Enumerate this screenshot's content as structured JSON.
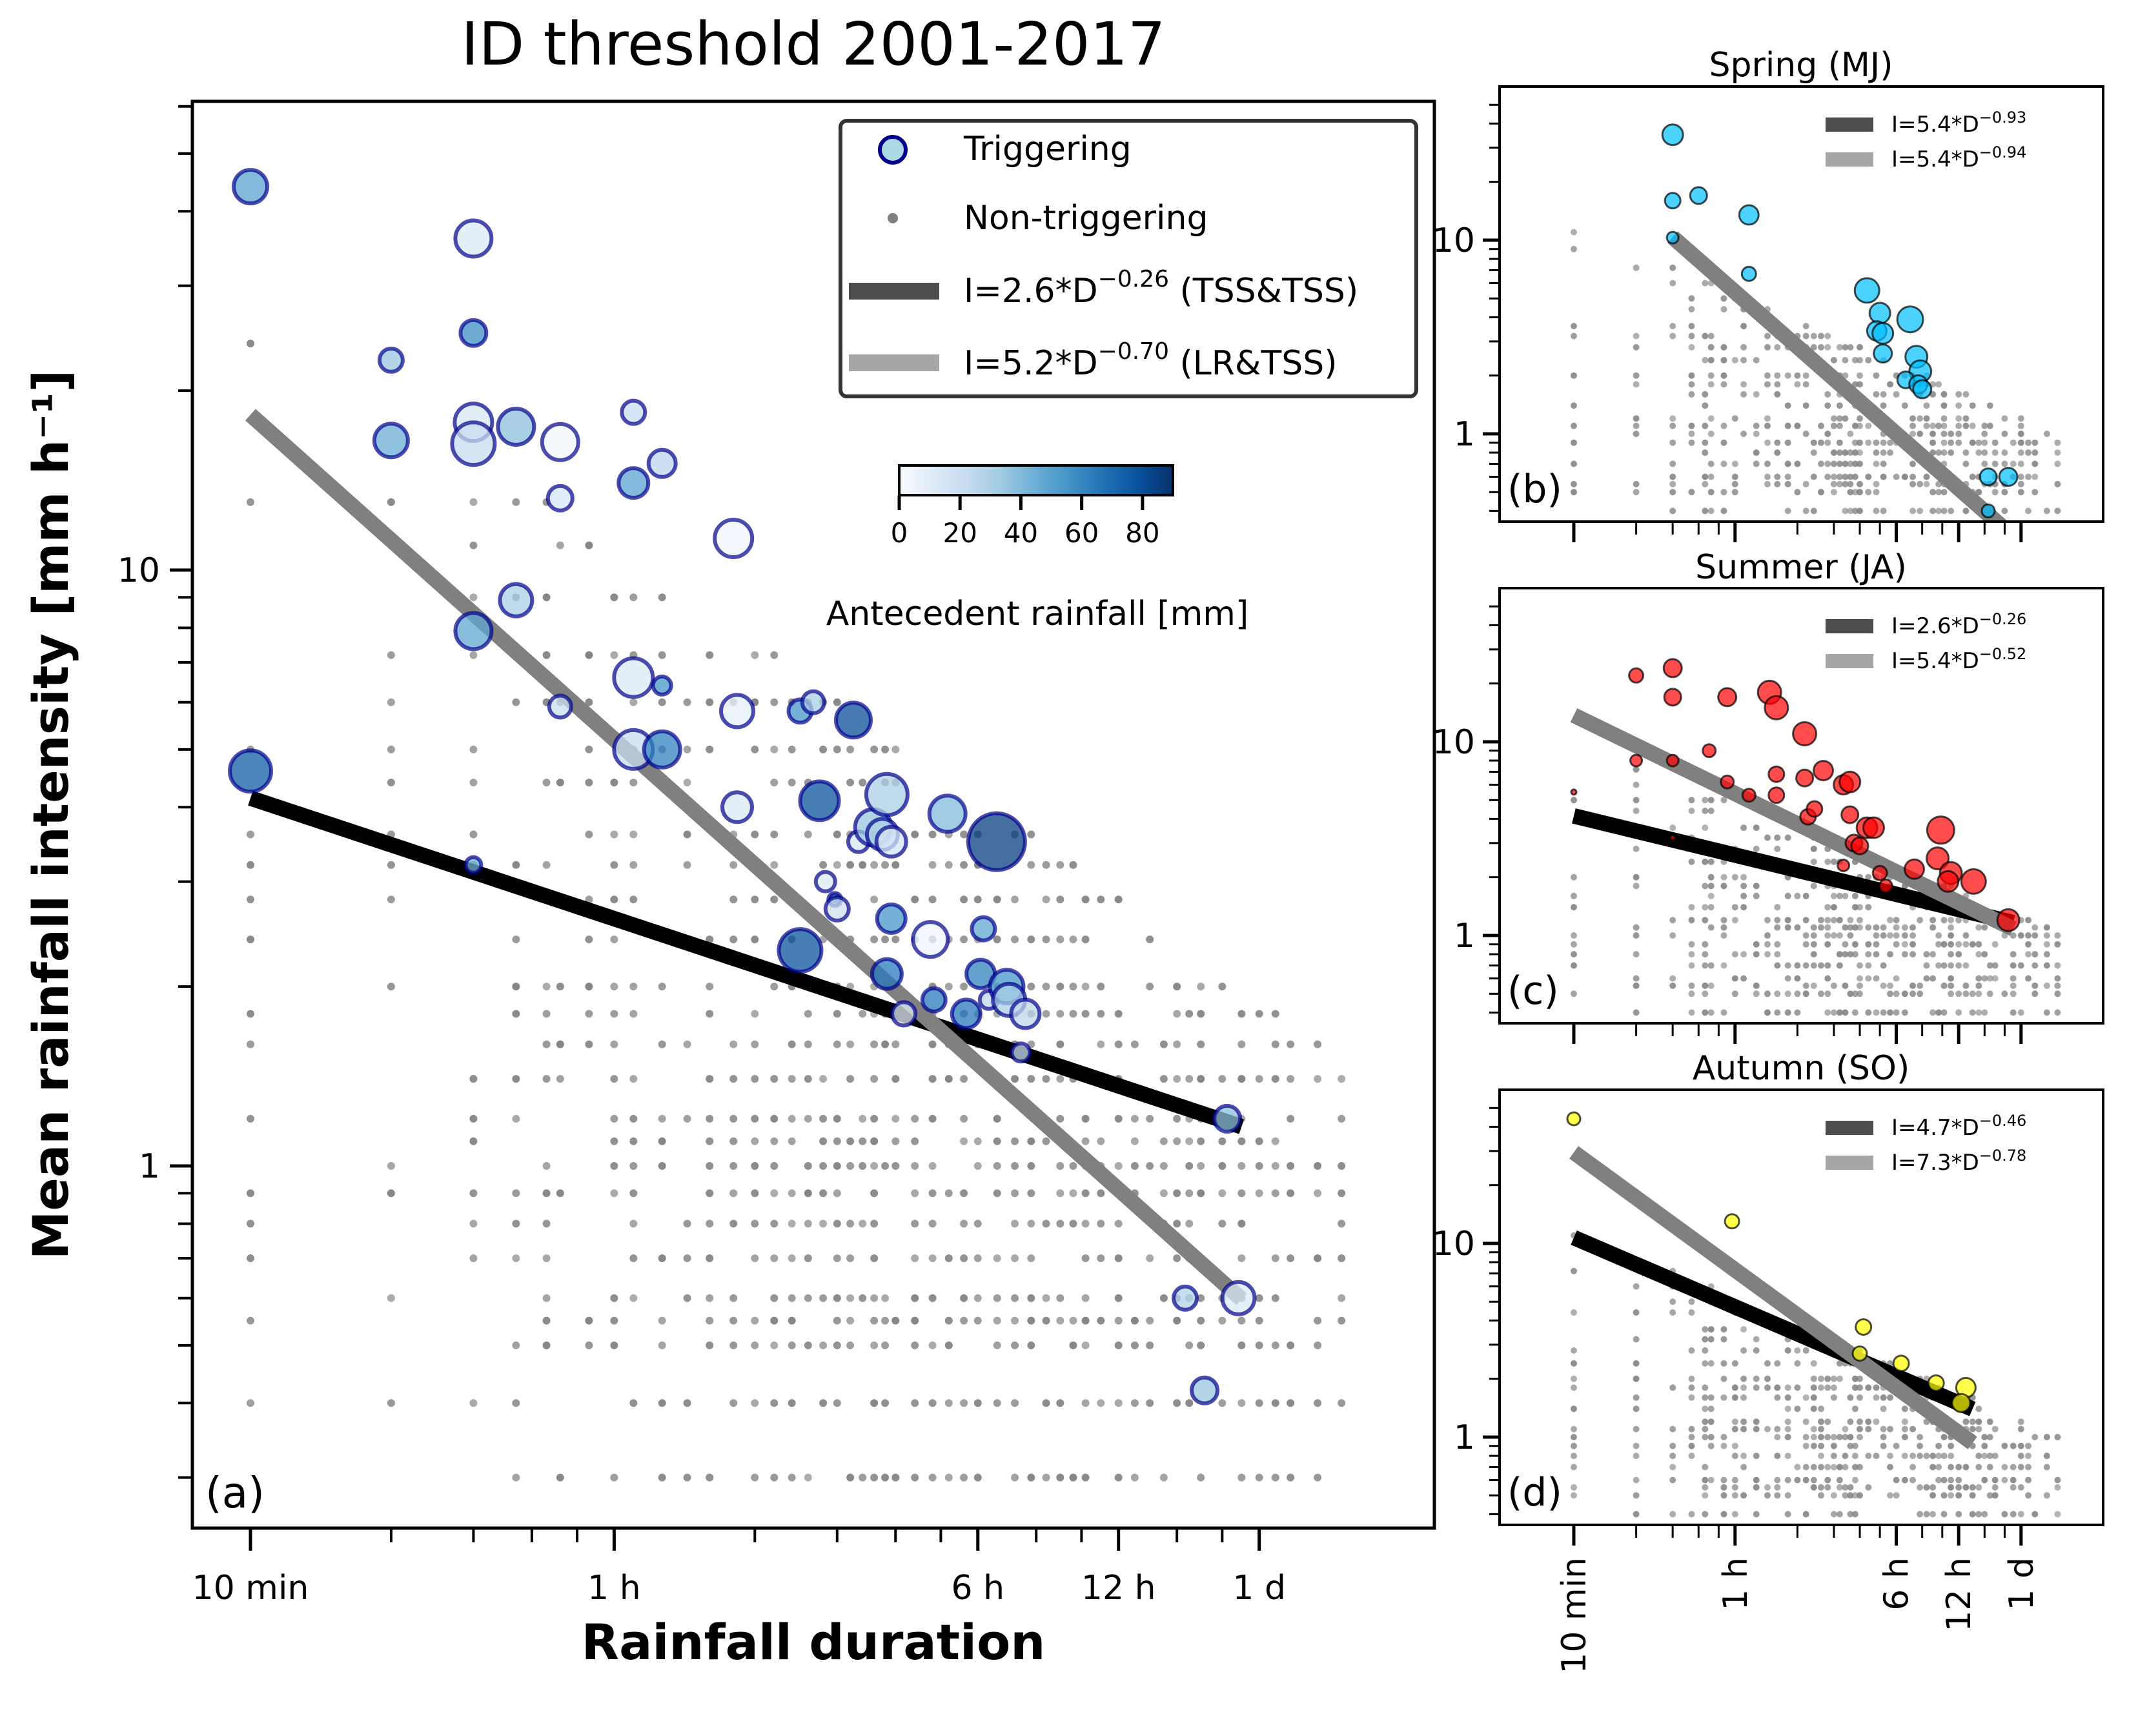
{
  "chart_data": [
    {
      "id": "a",
      "type": "scatter",
      "title": "ID threshold 2001-2017",
      "panel_label": "(a)",
      "xlabel": "Rainfall duration",
      "ylabel": "Mean rainfall intensity [mm h⁻¹]",
      "xscale": "log",
      "yscale": "log",
      "x_unit": "minutes",
      "xlim": [
        7,
        3000
      ],
      "ylim": [
        0.25,
        61
      ],
      "xticks": [
        {
          "value": 10,
          "label": "10 min"
        },
        {
          "value": 60,
          "label": "1 h"
        },
        {
          "value": 360,
          "label": "6 h"
        },
        {
          "value": 720,
          "label": "12 h"
        },
        {
          "value": 1440,
          "label": "1 d"
        }
      ],
      "yticks": [
        {
          "value": 1,
          "label": "1"
        },
        {
          "value": 10,
          "label": "10"
        }
      ],
      "legend": {
        "placement": "top-right",
        "entries": [
          {
            "kind": "triggering",
            "label": "Triggering"
          },
          {
            "kind": "non-triggering",
            "label": "Non-triggering"
          },
          {
            "kind": "line-dark",
            "label_main": "I=2.6*D",
            "label_exp": "−0.26",
            "label_suffix": " (TSS&TSS)"
          },
          {
            "kind": "line-light",
            "label_main": "I=5.2*D",
            "label_exp": "−0.70",
            "label_suffix": " (LR&TSS)"
          }
        ]
      },
      "colorbar": {
        "label": "Antecedent rainfall [mm]",
        "min": 0,
        "max": 90,
        "ticks": [
          0,
          20,
          40,
          60,
          80
        ],
        "colormap": "Blues"
      },
      "thresholds": [
        {
          "name": "TSS&TSS",
          "a": 2.6,
          "b": -0.26,
          "x_from": 10,
          "x_to": 1320,
          "color": "#000000"
        },
        {
          "name": "LR&TSS",
          "a": 5.2,
          "b": -0.7,
          "x_from": 10,
          "x_to": 1320,
          "color": "#808080"
        }
      ],
      "triggering": [
        {
          "d": 10,
          "i": 44,
          "ar": 50,
          "s": 26
        },
        {
          "d": 10,
          "i": 4.6,
          "ar": 75,
          "s": 32
        },
        {
          "d": 20,
          "i": 22.5,
          "ar": 35,
          "s": 18
        },
        {
          "d": 20,
          "i": 16.5,
          "ar": 45,
          "s": 26
        },
        {
          "d": 30,
          "i": 36,
          "ar": 12,
          "s": 28
        },
        {
          "d": 30,
          "i": 25,
          "ar": 58,
          "s": 20
        },
        {
          "d": 30,
          "i": 17.7,
          "ar": 14,
          "s": 29
        },
        {
          "d": 30,
          "i": 16.3,
          "ar": 22,
          "s": 33
        },
        {
          "d": 30,
          "i": 7.9,
          "ar": 48,
          "s": 28
        },
        {
          "d": 30,
          "i": 3.2,
          "ar": 45,
          "s": 12
        },
        {
          "d": 37,
          "i": 17.4,
          "ar": 38,
          "s": 28
        },
        {
          "d": 37,
          "i": 8.9,
          "ar": 30,
          "s": 25
        },
        {
          "d": 46,
          "i": 16.4,
          "ar": 3,
          "s": 28
        },
        {
          "d": 46,
          "i": 13.2,
          "ar": 15,
          "s": 19
        },
        {
          "d": 46,
          "i": 5.9,
          "ar": 20,
          "s": 17
        },
        {
          "d": 66,
          "i": 18.4,
          "ar": 22,
          "s": 18
        },
        {
          "d": 66,
          "i": 14,
          "ar": 50,
          "s": 23
        },
        {
          "d": 66,
          "i": 6.6,
          "ar": 12,
          "s": 30
        },
        {
          "d": 66,
          "i": 5,
          "ar": 22,
          "s": 30
        },
        {
          "d": 76,
          "i": 15.1,
          "ar": 26,
          "s": 21
        },
        {
          "d": 76,
          "i": 6.4,
          "ar": 55,
          "s": 14
        },
        {
          "d": 76,
          "i": 5,
          "ar": 62,
          "s": 28
        },
        {
          "d": 108,
          "i": 11.3,
          "ar": 4,
          "s": 29
        },
        {
          "d": 110,
          "i": 5.8,
          "ar": 8,
          "s": 25
        },
        {
          "d": 110,
          "i": 4,
          "ar": 12,
          "s": 23
        },
        {
          "d": 150,
          "i": 5.8,
          "ar": 55,
          "s": 18
        },
        {
          "d": 160,
          "i": 6.0,
          "ar": 30,
          "s": 17
        },
        {
          "d": 150,
          "i": 2.3,
          "ar": 78,
          "s": 33
        },
        {
          "d": 165,
          "i": 4.1,
          "ar": 78,
          "s": 30
        },
        {
          "d": 170,
          "i": 3.0,
          "ar": 12,
          "s": 15
        },
        {
          "d": 178,
          "i": 2.8,
          "ar": 80,
          "s": 10
        },
        {
          "d": 180,
          "i": 2.7,
          "ar": 18,
          "s": 18
        },
        {
          "d": 195,
          "i": 5.6,
          "ar": 80,
          "s": 27
        },
        {
          "d": 200,
          "i": 3.5,
          "ar": 15,
          "s": 16
        },
        {
          "d": 215,
          "i": 3.7,
          "ar": 35,
          "s": 28
        },
        {
          "d": 225,
          "i": 3.6,
          "ar": 30,
          "s": 24
        },
        {
          "d": 235,
          "i": 3.5,
          "ar": 15,
          "s": 23
        },
        {
          "d": 230,
          "i": 4.2,
          "ar": 30,
          "s": 32
        },
        {
          "d": 235,
          "i": 2.6,
          "ar": 55,
          "s": 22
        },
        {
          "d": 230,
          "i": 2.1,
          "ar": 65,
          "s": 23
        },
        {
          "d": 250,
          "i": 1.8,
          "ar": 10,
          "s": 18
        },
        {
          "d": 285,
          "i": 2.4,
          "ar": 4,
          "s": 27
        },
        {
          "d": 290,
          "i": 1.9,
          "ar": 65,
          "s": 18
        },
        {
          "d": 310,
          "i": 3.9,
          "ar": 40,
          "s": 28
        },
        {
          "d": 340,
          "i": 1.8,
          "ar": 65,
          "s": 22
        },
        {
          "d": 365,
          "i": 2.1,
          "ar": 62,
          "s": 22
        },
        {
          "d": 370,
          "i": 2.5,
          "ar": 48,
          "s": 18
        },
        {
          "d": 380,
          "i": 1.9,
          "ar": 25,
          "s": 14
        },
        {
          "d": 395,
          "i": 3.5,
          "ar": 85,
          "s": 44
        },
        {
          "d": 415,
          "i": 2.0,
          "ar": 55,
          "s": 26
        },
        {
          "d": 420,
          "i": 1.9,
          "ar": 30,
          "s": 25
        },
        {
          "d": 455,
          "i": 1.8,
          "ar": 25,
          "s": 22
        },
        {
          "d": 445,
          "i": 1.55,
          "ar": 20,
          "s": 14
        },
        {
          "d": 1000,
          "i": 0.6,
          "ar": 28,
          "s": 18
        },
        {
          "d": 1100,
          "i": 0.42,
          "ar": 35,
          "s": 20
        },
        {
          "d": 1230,
          "i": 1.2,
          "ar": 38,
          "s": 20
        },
        {
          "d": 1300,
          "i": 0.6,
          "ar": 12,
          "s": 25
        }
      ],
      "non_triggering": {
        "durations": [
          10,
          20,
          30,
          37,
          43,
          46,
          53,
          60,
          66,
          76,
          86,
          96,
          108,
          120,
          132,
          144,
          156,
          168,
          180,
          192,
          204,
          216,
          228,
          240,
          264,
          288,
          312,
          336,
          360,
          396,
          432,
          468,
          504,
          540,
          576,
          612,
          660,
          720,
          780,
          840,
          900,
          960,
          1020,
          1080,
          1200,
          1320,
          1440,
          1560,
          1680,
          1920,
          2160
        ],
        "intensities": [
          0.3,
          0.4,
          0.5,
          0.55,
          0.6,
          0.7,
          0.8,
          0.9,
          1.0,
          1.1,
          1.2,
          1.4,
          1.6,
          1.8,
          2.0,
          2.4,
          2.8,
          3.2,
          3.6,
          4.4,
          5.0,
          6.0,
          7.2,
          9.0,
          11,
          13,
          24,
          29
        ],
        "count_shown": "approx. 700"
      }
    },
    {
      "id": "b",
      "type": "scatter",
      "title": "Spring (MJ)",
      "panel_label": "(b)",
      "xscale": "log",
      "yscale": "log",
      "xlim": [
        7,
        3000
      ],
      "ylim": [
        0.28,
        55
      ],
      "xticks": [
        {
          "value": 10,
          "label": "10 min"
        },
        {
          "value": 60,
          "label": "1 h"
        },
        {
          "value": 360,
          "label": "6 h"
        },
        {
          "value": 720,
          "label": "12 h"
        },
        {
          "value": 1440,
          "label": "1 d"
        }
      ],
      "yticks": [
        {
          "value": 1,
          "label": "1"
        },
        {
          "value": 10,
          "label": "10"
        }
      ],
      "marker_color": "#00BFFF",
      "legend": [
        {
          "label_main": "I=5.4*D",
          "label_exp": "−0.93",
          "color": "#4d4d4d"
        },
        {
          "label_main": "I=5.4*D",
          "label_exp": "−0.94",
          "color": "#a6a6a6"
        }
      ],
      "thresholds": [
        {
          "a": 5.4,
          "b": -0.93,
          "x_from": 30,
          "x_to": 1320,
          "color": "#000000",
          "width": "thin"
        },
        {
          "a": 5.4,
          "b": -0.94,
          "x_from": 30,
          "x_to": 1320,
          "color": "#808080",
          "width": "thick"
        }
      ],
      "triggering": [
        {
          "d": 30,
          "i": 35,
          "s": 16
        },
        {
          "d": 30,
          "i": 16,
          "s": 12
        },
        {
          "d": 40,
          "i": 17,
          "s": 13
        },
        {
          "d": 30,
          "i": 10.3,
          "s": 9
        },
        {
          "d": 70,
          "i": 13.5,
          "s": 15
        },
        {
          "d": 70,
          "i": 6.7,
          "s": 11
        },
        {
          "d": 260,
          "i": 5.5,
          "s": 19
        },
        {
          "d": 300,
          "i": 4.2,
          "s": 16
        },
        {
          "d": 290,
          "i": 3.4,
          "s": 15
        },
        {
          "d": 310,
          "i": 3.3,
          "s": 16
        },
        {
          "d": 310,
          "i": 2.6,
          "s": 14
        },
        {
          "d": 420,
          "i": 3.9,
          "s": 20
        },
        {
          "d": 450,
          "i": 2.5,
          "s": 17
        },
        {
          "d": 470,
          "i": 2.1,
          "s": 17
        },
        {
          "d": 400,
          "i": 1.9,
          "s": 13
        },
        {
          "d": 460,
          "i": 1.8,
          "s": 14
        },
        {
          "d": 480,
          "i": 1.7,
          "s": 14
        },
        {
          "d": 1000,
          "i": 0.6,
          "s": 13
        },
        {
          "d": 1250,
          "i": 0.6,
          "s": 14
        },
        {
          "d": 1000,
          "i": 0.4,
          "s": 10
        }
      ]
    },
    {
      "id": "c",
      "type": "scatter",
      "title": "Summer (JA)",
      "panel_label": "(c)",
      "xscale": "log",
      "yscale": "log",
      "xlim": [
        7,
        3000
      ],
      "ylim": [
        0.28,
        55
      ],
      "xticks": [
        {
          "value": 10,
          "label": "10 min"
        },
        {
          "value": 60,
          "label": "1 h"
        },
        {
          "value": 360,
          "label": "6 h"
        },
        {
          "value": 720,
          "label": "12 h"
        },
        {
          "value": 1440,
          "label": "1 d"
        }
      ],
      "yticks": [
        {
          "value": 1,
          "label": "1"
        },
        {
          "value": 10,
          "label": "10"
        }
      ],
      "marker_color": "#FF0000",
      "legend": [
        {
          "label_main": "I=2.6*D",
          "label_exp": "−0.26",
          "color": "#4d4d4d"
        },
        {
          "label_main": "I=5.4*D",
          "label_exp": "−0.52",
          "color": "#a6a6a6"
        }
      ],
      "thresholds": [
        {
          "a": 2.6,
          "b": -0.26,
          "x_from": 10,
          "x_to": 1320,
          "color": "#000000",
          "width": "thick"
        },
        {
          "a": 5.4,
          "b": -0.52,
          "x_from": 10,
          "x_to": 1320,
          "color": "#808080",
          "width": "thick"
        }
      ],
      "triggering": [
        {
          "d": 20,
          "i": 22,
          "s": 11
        },
        {
          "d": 20,
          "i": 8,
          "s": 9
        },
        {
          "d": 30,
          "i": 24,
          "s": 14
        },
        {
          "d": 30,
          "i": 17,
          "s": 13
        },
        {
          "d": 30,
          "i": 8.0,
          "s": 9
        },
        {
          "d": 30,
          "i": 3.2,
          "s": 4
        },
        {
          "d": 10,
          "i": 5.5,
          "s": 4
        },
        {
          "d": 45,
          "i": 9.0,
          "s": 10
        },
        {
          "d": 55,
          "i": 17,
          "s": 14
        },
        {
          "d": 55,
          "i": 6.2,
          "s": 10
        },
        {
          "d": 70,
          "i": 5.3,
          "s": 10
        },
        {
          "d": 88,
          "i": 18,
          "s": 18
        },
        {
          "d": 95,
          "i": 15,
          "s": 18
        },
        {
          "d": 95,
          "i": 6.8,
          "s": 12
        },
        {
          "d": 95,
          "i": 5.3,
          "s": 12
        },
        {
          "d": 130,
          "i": 11,
          "s": 18
        },
        {
          "d": 130,
          "i": 6.5,
          "s": 13
        },
        {
          "d": 135,
          "i": 4.1,
          "s": 12
        },
        {
          "d": 145,
          "i": 4.5,
          "s": 12
        },
        {
          "d": 160,
          "i": 7.1,
          "s": 15
        },
        {
          "d": 200,
          "i": 6.0,
          "s": 15
        },
        {
          "d": 215,
          "i": 6.2,
          "s": 16
        },
        {
          "d": 215,
          "i": 4.2,
          "s": 13
        },
        {
          "d": 200,
          "i": 2.3,
          "s": 9
        },
        {
          "d": 225,
          "i": 3.0,
          "s": 13
        },
        {
          "d": 240,
          "i": 2.9,
          "s": 13
        },
        {
          "d": 260,
          "i": 3.6,
          "s": 16
        },
        {
          "d": 280,
          "i": 3.6,
          "s": 16
        },
        {
          "d": 300,
          "i": 2.1,
          "s": 11
        },
        {
          "d": 320,
          "i": 1.8,
          "s": 10
        },
        {
          "d": 440,
          "i": 2.2,
          "s": 15
        },
        {
          "d": 590,
          "i": 3.5,
          "s": 21
        },
        {
          "d": 570,
          "i": 2.5,
          "s": 17
        },
        {
          "d": 660,
          "i": 2.1,
          "s": 17
        },
        {
          "d": 640,
          "i": 1.9,
          "s": 16
        },
        {
          "d": 850,
          "i": 1.9,
          "s": 19
        },
        {
          "d": 1250,
          "i": 1.2,
          "s": 17
        }
      ]
    },
    {
      "id": "d",
      "type": "scatter",
      "title": "Autumn (SO)",
      "panel_label": "(d)",
      "xscale": "log",
      "yscale": "log",
      "xlim": [
        7,
        3000
      ],
      "ylim": [
        0.28,
        55
      ],
      "xticks": [
        {
          "value": 10,
          "label": "10 min"
        },
        {
          "value": 60,
          "label": "1 h"
        },
        {
          "value": 360,
          "label": "6 h"
        },
        {
          "value": 720,
          "label": "12 h"
        },
        {
          "value": 1440,
          "label": "1 d"
        }
      ],
      "yticks": [
        {
          "value": 1,
          "label": "1"
        },
        {
          "value": 10,
          "label": "10"
        }
      ],
      "marker_color": "#FFFF00",
      "legend": [
        {
          "label_main": "I=4.7*D",
          "label_exp": "−0.46",
          "color": "#4d4d4d"
        },
        {
          "label_main": "I=7.3*D",
          "label_exp": "−0.78",
          "color": "#a6a6a6"
        }
      ],
      "thresholds": [
        {
          "a": 4.7,
          "b": -0.46,
          "x_from": 10,
          "x_to": 840,
          "color": "#000000",
          "width": "thick"
        },
        {
          "a": 7.3,
          "b": -0.78,
          "x_from": 10,
          "x_to": 840,
          "color": "#808080",
          "width": "thick"
        }
      ],
      "triggering": [
        {
          "d": 10,
          "i": 44,
          "s": 10
        },
        {
          "d": 58,
          "i": 13,
          "s": 11
        },
        {
          "d": 250,
          "i": 3.7,
          "s": 12
        },
        {
          "d": 240,
          "i": 2.7,
          "s": 11
        },
        {
          "d": 380,
          "i": 2.4,
          "s": 12
        },
        {
          "d": 560,
          "i": 1.9,
          "s": 12
        },
        {
          "d": 780,
          "i": 1.8,
          "s": 15
        },
        {
          "d": 740,
          "i": 1.5,
          "s": 14
        }
      ]
    }
  ]
}
